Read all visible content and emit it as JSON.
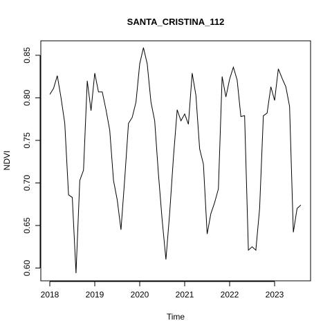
{
  "chart_data": {
    "type": "line",
    "title": "SANTA_CRISTINA_112",
    "xlabel": "Time",
    "ylabel": "NDVI",
    "xlim": [
      2017.8,
      2023.8
    ],
    "ylim": [
      0.585,
      0.867
    ],
    "x_ticks": [
      2018,
      2019,
      2020,
      2021,
      2022,
      2023
    ],
    "x_tick_labels": [
      "2018",
      "2019",
      "2020",
      "2021",
      "2022",
      "2023"
    ],
    "y_ticks": [
      0.6,
      0.65,
      0.7,
      0.75,
      0.8,
      0.85
    ],
    "y_tick_labels": [
      "0.60",
      "0.65",
      "0.70",
      "0.75",
      "0.80",
      "0.85"
    ],
    "grid": false,
    "box": true,
    "line_color": "#000000",
    "series": [
      {
        "x": [
          2018.0,
          2018.083,
          2018.167,
          2018.25,
          2018.333,
          2018.417,
          2018.5,
          2018.583,
          2018.667,
          2018.75,
          2018.833,
          2018.917,
          2019.0,
          2019.083,
          2019.167,
          2019.25,
          2019.333,
          2019.417,
          2019.5,
          2019.583,
          2019.667,
          2019.75,
          2019.833,
          2019.917,
          2020.0,
          2020.083,
          2020.167,
          2020.25,
          2020.333,
          2020.417,
          2020.5,
          2020.583,
          2020.667,
          2020.75,
          2020.833,
          2020.917,
          2021.0,
          2021.083,
          2021.167,
          2021.25,
          2021.333,
          2021.417,
          2021.5,
          2021.583,
          2021.667,
          2021.75,
          2021.833,
          2021.917,
          2022.0,
          2022.083,
          2022.167,
          2022.25,
          2022.333,
          2022.417,
          2022.5,
          2022.583,
          2022.667,
          2022.75,
          2022.833,
          2022.917,
          2023.0,
          2023.083,
          2023.167,
          2023.25,
          2023.333,
          2023.417,
          2023.5,
          2023.583
        ],
        "values": [
          0.804,
          0.811,
          0.826,
          0.8,
          0.77,
          0.686,
          0.683,
          0.594,
          0.703,
          0.715,
          0.82,
          0.785,
          0.829,
          0.807,
          0.807,
          0.786,
          0.762,
          0.703,
          0.68,
          0.645,
          0.705,
          0.77,
          0.777,
          0.795,
          0.84,
          0.859,
          0.84,
          0.795,
          0.773,
          0.71,
          0.656,
          0.61,
          0.665,
          0.73,
          0.786,
          0.773,
          0.781,
          0.769,
          0.829,
          0.803,
          0.74,
          0.722,
          0.64,
          0.664,
          0.677,
          0.693,
          0.825,
          0.801,
          0.822,
          0.836,
          0.821,
          0.778,
          0.779,
          0.621,
          0.625,
          0.621,
          0.67,
          0.779,
          0.782,
          0.813,
          0.797,
          0.834,
          0.823,
          0.813,
          0.79,
          0.642,
          0.67,
          0.674
        ]
      }
    ]
  }
}
